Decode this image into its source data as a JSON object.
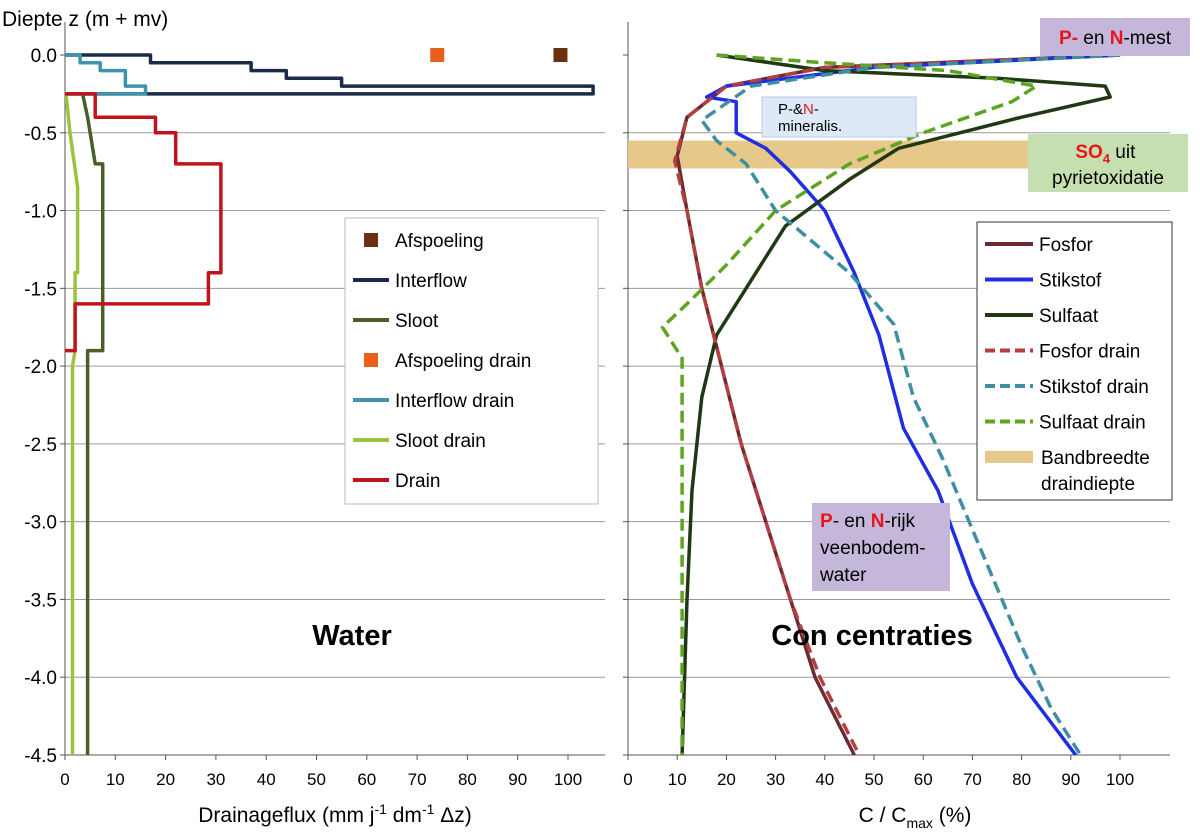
{
  "y_title": "Diepte z (m + mv)",
  "chart_data": [
    {
      "type": "line",
      "panel_label": "Water",
      "xlabel": "Drainageflux (mm j-1 dm-1 Δz)",
      "xlabel_parts": [
        "Drainageflux (mm j",
        "-1",
        " dm",
        "-1",
        " Δz)"
      ],
      "xlim": [
        0,
        110
      ],
      "ylim": [
        -4.5,
        0.2
      ],
      "xticks": [
        "0",
        "10",
        "20",
        "30",
        "40",
        "50",
        "60",
        "70",
        "80",
        "90",
        "100"
      ],
      "yticks": [
        "0.0",
        "-0.5",
        "-1.0",
        "-1.5",
        "-2.0",
        "-2.5",
        "-3.0",
        "-3.5",
        "-4.0",
        "-4.5"
      ],
      "grid": "horizontal",
      "legend_position": "right",
      "series": [
        {
          "name": "Afspoeling",
          "kind": "marker",
          "color": "#6b2f12",
          "points": [
            [
              98.5,
              0.0
            ]
          ]
        },
        {
          "name": "Interflow",
          "kind": "line",
          "color": "#1b2a4a",
          "points": [
            [
              0,
              0
            ],
            [
              17,
              0
            ],
            [
              17,
              -0.05
            ],
            [
              37,
              -0.05
            ],
            [
              37,
              -0.1
            ],
            [
              44,
              -0.1
            ],
            [
              44,
              -0.15
            ],
            [
              55,
              -0.15
            ],
            [
              55,
              -0.2
            ],
            [
              105,
              -0.2
            ],
            [
              105,
              -0.25
            ],
            [
              0,
              -0.25
            ]
          ]
        },
        {
          "name": "Sloot",
          "kind": "line",
          "color": "#4a5e28",
          "points": [
            [
              3.5,
              -0.25
            ],
            [
              4.5,
              -0.4
            ],
            [
              6,
              -0.7
            ],
            [
              7.5,
              -0.7
            ],
            [
              7.5,
              -1.9
            ],
            [
              4.5,
              -1.9
            ],
            [
              4.5,
              -4.5
            ]
          ]
        },
        {
          "name": "Afspoeling drain",
          "kind": "marker",
          "color": "#e8601c",
          "points": [
            [
              74,
              0.0
            ]
          ]
        },
        {
          "name": "Interflow drain",
          "kind": "line",
          "color": "#3f93ad",
          "points": [
            [
              0,
              0
            ],
            [
              3,
              0
            ],
            [
              3,
              -0.05
            ],
            [
              7,
              -0.05
            ],
            [
              7,
              -0.1
            ],
            [
              12,
              -0.1
            ],
            [
              12,
              -0.2
            ],
            [
              16,
              -0.2
            ],
            [
              16,
              -0.25
            ],
            [
              0,
              -0.25
            ]
          ]
        },
        {
          "name": "Sloot drain",
          "kind": "line",
          "color": "#9bc33c",
          "points": [
            [
              0.2,
              -0.25
            ],
            [
              1,
              -0.5
            ],
            [
              2.5,
              -0.85
            ],
            [
              2.5,
              -1.4
            ],
            [
              2,
              -1.4
            ],
            [
              2,
              -1.9
            ],
            [
              1.5,
              -2.0
            ],
            [
              1.5,
              -4.5
            ]
          ]
        },
        {
          "name": "Drain",
          "kind": "line",
          "color": "#c0141c",
          "points": [
            [
              0,
              -0.25
            ],
            [
              6,
              -0.25
            ],
            [
              6,
              -0.4
            ],
            [
              18,
              -0.4
            ],
            [
              18,
              -0.5
            ],
            [
              22,
              -0.5
            ],
            [
              22,
              -0.7
            ],
            [
              31,
              -0.7
            ],
            [
              31,
              -1.4
            ],
            [
              28.5,
              -1.4
            ],
            [
              28.5,
              -1.6
            ],
            [
              2,
              -1.6
            ],
            [
              2,
              -1.9
            ],
            [
              0,
              -1.9
            ]
          ]
        }
      ]
    },
    {
      "type": "line",
      "panel_label": "Con centraties",
      "xlabel": "C / Cmax (%)",
      "xlabel_parts": [
        "C / C",
        "max",
        " (%)"
      ],
      "xlim": [
        0,
        110
      ],
      "ylim": [
        -4.5,
        0.2
      ],
      "xticks": [
        "0",
        "10",
        "20",
        "30",
        "40",
        "50",
        "60",
        "70",
        "80",
        "90",
        "100"
      ],
      "grid": "horizontal",
      "legend_position": "right",
      "series": [
        {
          "name": "Fosfor",
          "style": "solid",
          "color": "#6e2a32",
          "points": [
            [
              100,
              0.0
            ],
            [
              40,
              -0.08
            ],
            [
              20,
              -0.2
            ],
            [
              12,
              -0.4
            ],
            [
              10,
              -0.65
            ],
            [
              12,
              -1.0
            ],
            [
              15,
              -1.5
            ],
            [
              19,
              -2.0
            ],
            [
              23,
              -2.5
            ],
            [
              28,
              -3.0
            ],
            [
              33,
              -3.5
            ],
            [
              38,
              -4.0
            ],
            [
              46,
              -4.5
            ]
          ]
        },
        {
          "name": "Stikstof",
          "style": "solid",
          "color": "#1f2ee0",
          "points": [
            [
              100,
              0.0
            ],
            [
              50,
              -0.08
            ],
            [
              20,
              -0.2
            ],
            [
              16,
              -0.27
            ],
            [
              22,
              -0.3
            ],
            [
              22,
              -0.5
            ],
            [
              28,
              -0.6
            ],
            [
              33,
              -0.75
            ],
            [
              40,
              -1.0
            ],
            [
              46,
              -1.4
            ],
            [
              51,
              -1.8
            ],
            [
              56,
              -2.4
            ],
            [
              63,
              -2.8
            ],
            [
              70,
              -3.4
            ],
            [
              79,
              -4.0
            ],
            [
              91,
              -4.5
            ]
          ]
        },
        {
          "name": "Sulfaat",
          "style": "solid",
          "color": "#203813",
          "points": [
            [
              18,
              0.0
            ],
            [
              40,
              -0.1
            ],
            [
              75,
              -0.15
            ],
            [
              97,
              -0.2
            ],
            [
              98,
              -0.27
            ],
            [
              80,
              -0.4
            ],
            [
              55,
              -0.6
            ],
            [
              45,
              -0.8
            ],
            [
              32,
              -1.1
            ],
            [
              24,
              -1.5
            ],
            [
              18,
              -1.8
            ],
            [
              15,
              -2.2
            ],
            [
              13,
              -2.8
            ],
            [
              12,
              -3.5
            ],
            [
              11,
              -4.5
            ]
          ]
        },
        {
          "name": "Fosfor drain",
          "style": "dashed",
          "color": "#b34040",
          "points": [
            [
              100,
              0.0
            ],
            [
              40,
              -0.08
            ],
            [
              20,
              -0.2
            ],
            [
              12,
              -0.4
            ],
            [
              9.5,
              -0.68
            ],
            [
              12,
              -1.0
            ],
            [
              15,
              -1.5
            ],
            [
              19,
              -2.0
            ],
            [
              23,
              -2.5
            ],
            [
              28,
              -3.0
            ],
            [
              33,
              -3.5
            ],
            [
              39,
              -4.0
            ],
            [
              47,
              -4.5
            ]
          ]
        },
        {
          "name": "Stikstof drain",
          "style": "dashed",
          "color": "#3f8fa3",
          "points": [
            [
              100,
              0.0
            ],
            [
              50,
              -0.08
            ],
            [
              25,
              -0.2
            ],
            [
              15,
              -0.42
            ],
            [
              18,
              -0.55
            ],
            [
              24,
              -0.7
            ],
            [
              30,
              -1.0
            ],
            [
              45,
              -1.4
            ],
            [
              54,
              -1.73
            ],
            [
              58,
              -2.2
            ],
            [
              64,
              -2.6
            ],
            [
              72,
              -3.2
            ],
            [
              80,
              -3.8
            ],
            [
              86,
              -4.2
            ],
            [
              92,
              -4.5
            ]
          ]
        },
        {
          "name": "Sulfaat drain",
          "style": "dashed",
          "color": "#5ea421",
          "points": [
            [
              18,
              0.0
            ],
            [
              40,
              -0.05
            ],
            [
              65,
              -0.1
            ],
            [
              83,
              -0.2
            ],
            [
              78,
              -0.3
            ],
            [
              60,
              -0.5
            ],
            [
              45,
              -0.7
            ],
            [
              30,
              -1.0
            ],
            [
              20,
              -1.35
            ],
            [
              12,
              -1.6
            ],
            [
              7,
              -1.75
            ],
            [
              11,
              -1.95
            ],
            [
              11,
              -2.5
            ],
            [
              11,
              -3.5
            ],
            [
              11,
              -4.5
            ]
          ]
        },
        {
          "name": "Bandbreedte draindiepte",
          "style": "band",
          "color": "#e6c98a",
          "y_range": [
            -0.55,
            -0.73
          ]
        }
      ],
      "annotations": [
        {
          "parts": [
            "P-",
            " en ",
            "N",
            "-mest"
          ],
          "colors": [
            "#e8161b",
            "#000000",
            "#e8161b",
            "#000000"
          ],
          "background": "#c5b7d9"
        },
        {
          "parts": [
            "P-&",
            "N",
            "-"
          ],
          "line2": "mineralis.",
          "colors": [
            "#000000",
            "#e8161b",
            "#000000"
          ],
          "background": "#dde9f7"
        },
        {
          "parts": [
            "SO",
            "4",
            " uit"
          ],
          "line2": "pyrietoxidatie",
          "colors": [
            "#e8161b",
            "#e8161b",
            "#000000"
          ],
          "background": "#c6dfb1"
        },
        {
          "parts": [
            "P",
            "- en ",
            "N",
            "-rijk"
          ],
          "line2": "veenbodem-",
          "line3": "water",
          "colors": [
            "#e8161b",
            "#000000",
            "#e8161b",
            "#000000"
          ],
          "background": "#c5b7d9"
        }
      ]
    }
  ]
}
